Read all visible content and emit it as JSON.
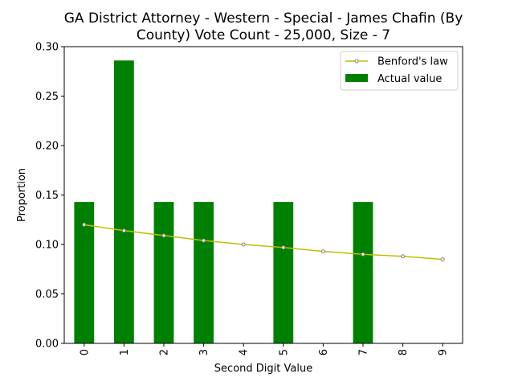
{
  "chart_data": {
    "type": "bar",
    "title_lines": [
      "GA District Attorney - Western - Special - James Chafin (By",
      "County) Vote Count - 25,000, Size - 7"
    ],
    "xlabel": "Second Digit Value",
    "ylabel": "Proportion",
    "categories": [
      "0",
      "1",
      "2",
      "3",
      "4",
      "5",
      "6",
      "7",
      "8",
      "9"
    ],
    "ylim": [
      0,
      0.3
    ],
    "yticks": [
      "0.00",
      "0.05",
      "0.10",
      "0.15",
      "0.20",
      "0.25",
      "0.30"
    ],
    "grid": false,
    "legend_position": "top-right",
    "series": [
      {
        "name": "Benford's law",
        "kind": "line",
        "color": "#bfbf00",
        "values": [
          0.12,
          0.114,
          0.109,
          0.104,
          0.1,
          0.097,
          0.093,
          0.09,
          0.088,
          0.085
        ]
      },
      {
        "name": "Actual value",
        "kind": "bar",
        "color": "#008000",
        "values": [
          0.143,
          0.286,
          0.143,
          0.143,
          0.0,
          0.143,
          0.0,
          0.143,
          0.0,
          0.0
        ]
      }
    ]
  }
}
